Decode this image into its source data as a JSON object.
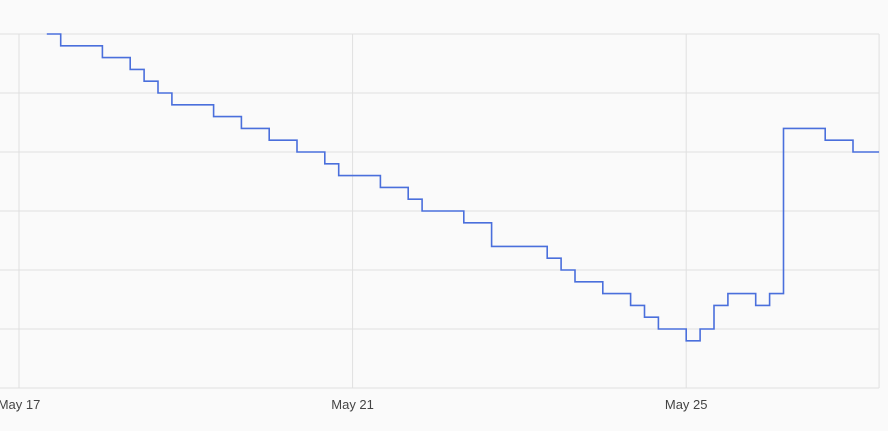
{
  "chart_data": {
    "type": "line",
    "step": true,
    "title": "",
    "xlabel": "",
    "ylabel": "",
    "x_ticks": [
      "May 17",
      "May 21",
      "May 25"
    ],
    "xlim": [
      "May 16 18:30",
      "May 27 07:30"
    ],
    "ylim": [
      0,
      30
    ],
    "y_gridlines": [
      0,
      5,
      10,
      15,
      20,
      25,
      30
    ],
    "y_tick_labels_visible": false,
    "grid": true,
    "line_color": "#4a6fdc",
    "series": [
      {
        "points": [
          [
            "May 17 08:00",
            30
          ],
          [
            "May 17 12:00",
            29
          ],
          [
            "May 18 00:00",
            28
          ],
          [
            "May 18 08:00",
            27
          ],
          [
            "May 18 12:00",
            26
          ],
          [
            "May 18 16:00",
            25
          ],
          [
            "May 18 20:00",
            24
          ],
          [
            "May 19 08:00",
            23
          ],
          [
            "May 19 16:00",
            22
          ],
          [
            "May 20 00:00",
            21
          ],
          [
            "May 20 08:00",
            20
          ],
          [
            "May 20 16:00",
            19
          ],
          [
            "May 20 20:00",
            18
          ],
          [
            "May 21 08:00",
            17
          ],
          [
            "May 21 16:00",
            16
          ],
          [
            "May 21 20:00",
            15
          ],
          [
            "May 22 08:00",
            14
          ],
          [
            "May 22 16:00",
            12
          ],
          [
            "May 23 08:00",
            11
          ],
          [
            "May 23 12:00",
            10
          ],
          [
            "May 23 16:00",
            9
          ],
          [
            "May 24 00:00",
            8
          ],
          [
            "May 24 08:00",
            7
          ],
          [
            "May 24 12:00",
            6
          ],
          [
            "May 24 16:00",
            5
          ],
          [
            "May 25 00:00",
            4
          ],
          [
            "May 25 04:00",
            5
          ],
          [
            "May 25 08:00",
            7
          ],
          [
            "May 25 12:00",
            8
          ],
          [
            "May 25 20:00",
            7
          ],
          [
            "May 26 00:00",
            8
          ],
          [
            "May 26 04:00",
            22
          ],
          [
            "May 26 16:00",
            21
          ],
          [
            "May 27 00:00",
            20
          ]
        ]
      }
    ]
  }
}
